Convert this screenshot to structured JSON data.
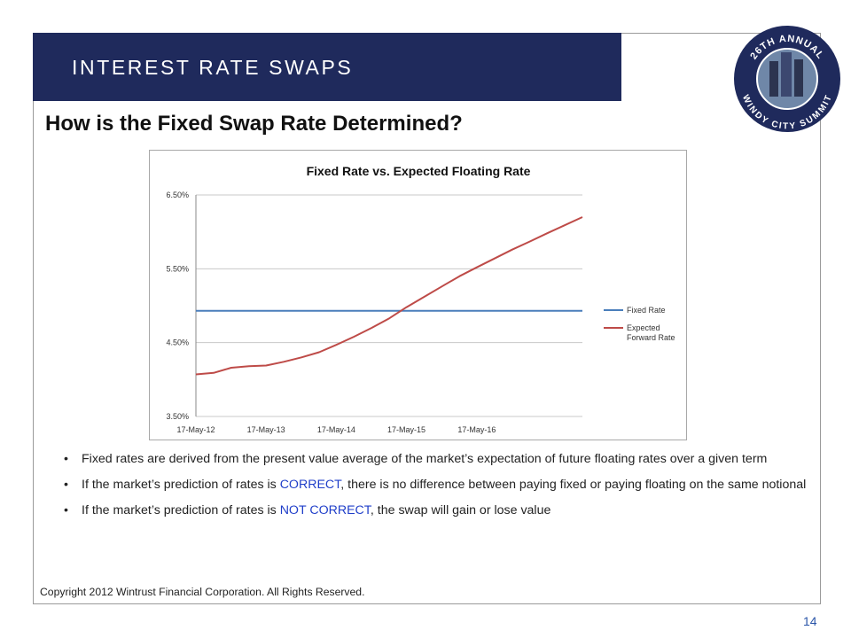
{
  "slide": {
    "banner_title": "INTEREST RATE SWAPS",
    "heading": "How is the Fixed Swap Rate Determined?",
    "copyright": "Copyright 2012 Wintrust Financial Corporation. All Rights Reserved.",
    "page_number": "14",
    "banner_color": "#1f2a5c"
  },
  "logo": {
    "top_text": "26TH ANNUAL",
    "bottom_text": "WINDY CITY SUMMIT",
    "ring_color": "#1f2a5c"
  },
  "bullets": [
    {
      "parts": [
        {
          "text": "Fixed rates are derived from the present value average of the market’s expectation of future floating rates over a given term",
          "hl": false
        }
      ]
    },
    {
      "parts": [
        {
          "text": "If the market’s prediction of rates is ",
          "hl": false
        },
        {
          "text": "CORRECT",
          "hl": true
        },
        {
          "text": ", there is no difference between paying fixed or paying floating on the same notional",
          "hl": false
        }
      ]
    },
    {
      "parts": [
        {
          "text": "If the market’s prediction of rates is ",
          "hl": false
        },
        {
          "text": "NOT CORRECT",
          "hl": true
        },
        {
          "text": ", the swap will gain or lose value",
          "hl": false
        }
      ]
    }
  ],
  "chart_data": {
    "type": "line",
    "title": "Fixed Rate vs. Expected Floating Rate",
    "xlabel": "",
    "ylabel": "",
    "x_ticks": [
      "17-May-12",
      "17-May-13",
      "17-May-14",
      "17-May-15",
      "17-May-16"
    ],
    "y_ticks": [
      "3.50%",
      "4.50%",
      "5.50%",
      "6.50%"
    ],
    "ylim": [
      3.5,
      6.5
    ],
    "xlim": [
      "2012-05-17",
      "2017-11-17"
    ],
    "grid": true,
    "legend": "right",
    "series": [
      {
        "name": "Fixed Rate",
        "color": "#4a7ebb",
        "x": [
          "2012-05-17",
          "2017-11-17"
        ],
        "y": [
          4.93,
          4.93
        ]
      },
      {
        "name": "Expected Forward Rate",
        "color": "#be4b48",
        "x": [
          "2012-05-17",
          "2012-08-17",
          "2012-11-17",
          "2013-02-17",
          "2013-05-17",
          "2013-08-17",
          "2013-11-17",
          "2014-02-17",
          "2014-05-17",
          "2014-08-17",
          "2014-11-17",
          "2015-02-17",
          "2015-05-17",
          "2015-08-17",
          "2015-11-17",
          "2016-02-17",
          "2016-05-17",
          "2016-08-17",
          "2016-11-17",
          "2017-02-17",
          "2017-05-17",
          "2017-08-17",
          "2017-11-17"
        ],
        "y": [
          4.07,
          4.09,
          4.16,
          4.18,
          4.19,
          4.24,
          4.3,
          4.37,
          4.47,
          4.58,
          4.7,
          4.83,
          4.98,
          5.12,
          5.26,
          5.4,
          5.52,
          5.64,
          5.76,
          5.87,
          5.98,
          6.09,
          6.2
        ]
      }
    ]
  }
}
